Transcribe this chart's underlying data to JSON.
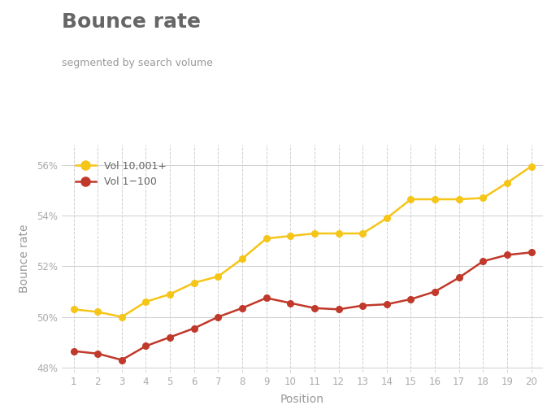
{
  "title": "Bounce rate",
  "subtitle": "segmented by search volume",
  "xlabel": "Position",
  "ylabel": "Bounce rate",
  "positions": [
    1,
    2,
    3,
    4,
    5,
    6,
    7,
    8,
    9,
    10,
    11,
    12,
    13,
    14,
    15,
    16,
    17,
    18,
    19,
    20
  ],
  "vol_high": [
    50.3,
    50.2,
    50.0,
    50.6,
    50.9,
    51.35,
    51.6,
    52.3,
    53.1,
    53.2,
    53.3,
    53.3,
    53.3,
    53.9,
    54.65,
    54.65,
    54.65,
    54.7,
    55.3,
    55.95
  ],
  "vol_low": [
    48.65,
    48.55,
    48.3,
    48.85,
    49.2,
    49.55,
    50.0,
    50.35,
    50.75,
    50.55,
    50.35,
    50.3,
    50.45,
    50.5,
    50.7,
    51.0,
    51.55,
    52.2,
    52.45,
    52.55
  ],
  "color_high": "#F5C518",
  "color_low": "#C0392B",
  "ylim": [
    47.8,
    56.8
  ],
  "yticks": [
    48,
    50,
    52,
    54,
    56
  ],
  "ytick_labels": [
    "48%",
    "50%",
    "52%",
    "54%",
    "56%"
  ],
  "legend_high": "Vol 10,001+",
  "legend_low": "Vol 1−100",
  "background_color": "#ffffff",
  "grid_color": "#d0d0d0",
  "title_color": "#666666",
  "subtitle_color": "#999999",
  "axis_label_color": "#999999",
  "tick_color": "#aaaaaa"
}
